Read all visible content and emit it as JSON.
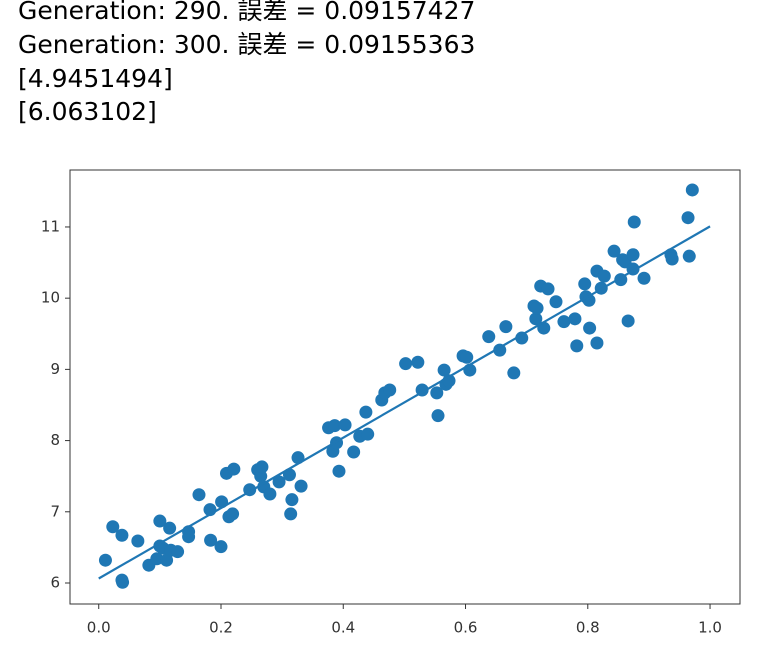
{
  "output": {
    "lines": [
      "Generation: 290. 誤差 = 0.09157427",
      "Generation: 300. 誤差 = 0.09155363",
      "[4.9451494]",
      "[6.063102]"
    ]
  },
  "chart_data": {
    "type": "scatter",
    "xlim": [
      -0.047,
      1.049
    ],
    "ylim": [
      5.705,
      11.8
    ],
    "xticks": [
      {
        "value": 0,
        "label": "0.0"
      },
      0.2,
      0.4,
      0.6,
      0.8,
      {
        "value": 1,
        "label": "1.0"
      }
    ],
    "yticks": [
      6,
      7,
      8,
      9,
      10,
      11
    ],
    "series": [
      {
        "type": "scatter",
        "color": "#1f77b4",
        "x": [
          0.011,
          0.023,
          0.038,
          0.038,
          0.039,
          0.064,
          0.082,
          0.095,
          0.1,
          0.1,
          0.105,
          0.111,
          0.116,
          0.118,
          0.129,
          0.147,
          0.147,
          0.164,
          0.182,
          0.183,
          0.2,
          0.201,
          0.209,
          0.213,
          0.221,
          0.219,
          0.247,
          0.26,
          0.265,
          0.267,
          0.27,
          0.28,
          0.295,
          0.312,
          0.314,
          0.316,
          0.326,
          0.331,
          0.376,
          0.383,
          0.386,
          0.389,
          0.393,
          0.403,
          0.417,
          0.427,
          0.437,
          0.44,
          0.463,
          0.468,
          0.476,
          0.502,
          0.522,
          0.529,
          0.553,
          0.555,
          0.565,
          0.568,
          0.573,
          0.596,
          0.602,
          0.607,
          0.638,
          0.656,
          0.666,
          0.679,
          0.692,
          0.712,
          0.715,
          0.717,
          0.723,
          0.728,
          0.735,
          0.748,
          0.761,
          0.779,
          0.782,
          0.795,
          0.797,
          0.802,
          0.803,
          0.815,
          0.815,
          0.822,
          0.827,
          0.843,
          0.854,
          0.857,
          0.861,
          0.866,
          0.874,
          0.874,
          0.876,
          0.892,
          0.936,
          0.938,
          0.964,
          0.966,
          0.971
        ],
        "values": [
          6.32,
          6.79,
          6.67,
          6.04,
          6.01,
          6.59,
          6.25,
          6.34,
          6.87,
          6.52,
          6.49,
          6.32,
          6.77,
          6.46,
          6.44,
          6.65,
          6.72,
          7.24,
          7.03,
          6.6,
          6.51,
          7.14,
          7.54,
          6.93,
          7.6,
          6.97,
          7.31,
          7.59,
          7.5,
          7.63,
          7.35,
          7.25,
          7.42,
          7.52,
          6.97,
          7.17,
          7.76,
          7.36,
          8.18,
          7.85,
          8.21,
          7.97,
          7.57,
          8.22,
          7.84,
          8.06,
          8.4,
          8.09,
          8.57,
          8.67,
          8.71,
          9.08,
          9.1,
          8.71,
          8.67,
          8.35,
          8.99,
          8.79,
          8.84,
          9.19,
          9.17,
          8.99,
          9.46,
          9.27,
          9.6,
          8.95,
          9.44,
          9.89,
          9.71,
          9.86,
          10.17,
          9.58,
          10.13,
          9.95,
          9.67,
          9.71,
          9.33,
          10.2,
          10.02,
          9.97,
          9.58,
          9.37,
          10.38,
          10.14,
          10.31,
          10.66,
          10.26,
          10.54,
          10.51,
          9.68,
          10.61,
          10.41,
          11.07,
          10.28,
          10.61,
          10.55,
          11.13,
          10.59,
          11.52
        ]
      },
      {
        "type": "line",
        "color": "#1f77b4",
        "x": [
          0,
          1
        ],
        "values": [
          6.063102,
          11.0082514
        ]
      }
    ]
  }
}
